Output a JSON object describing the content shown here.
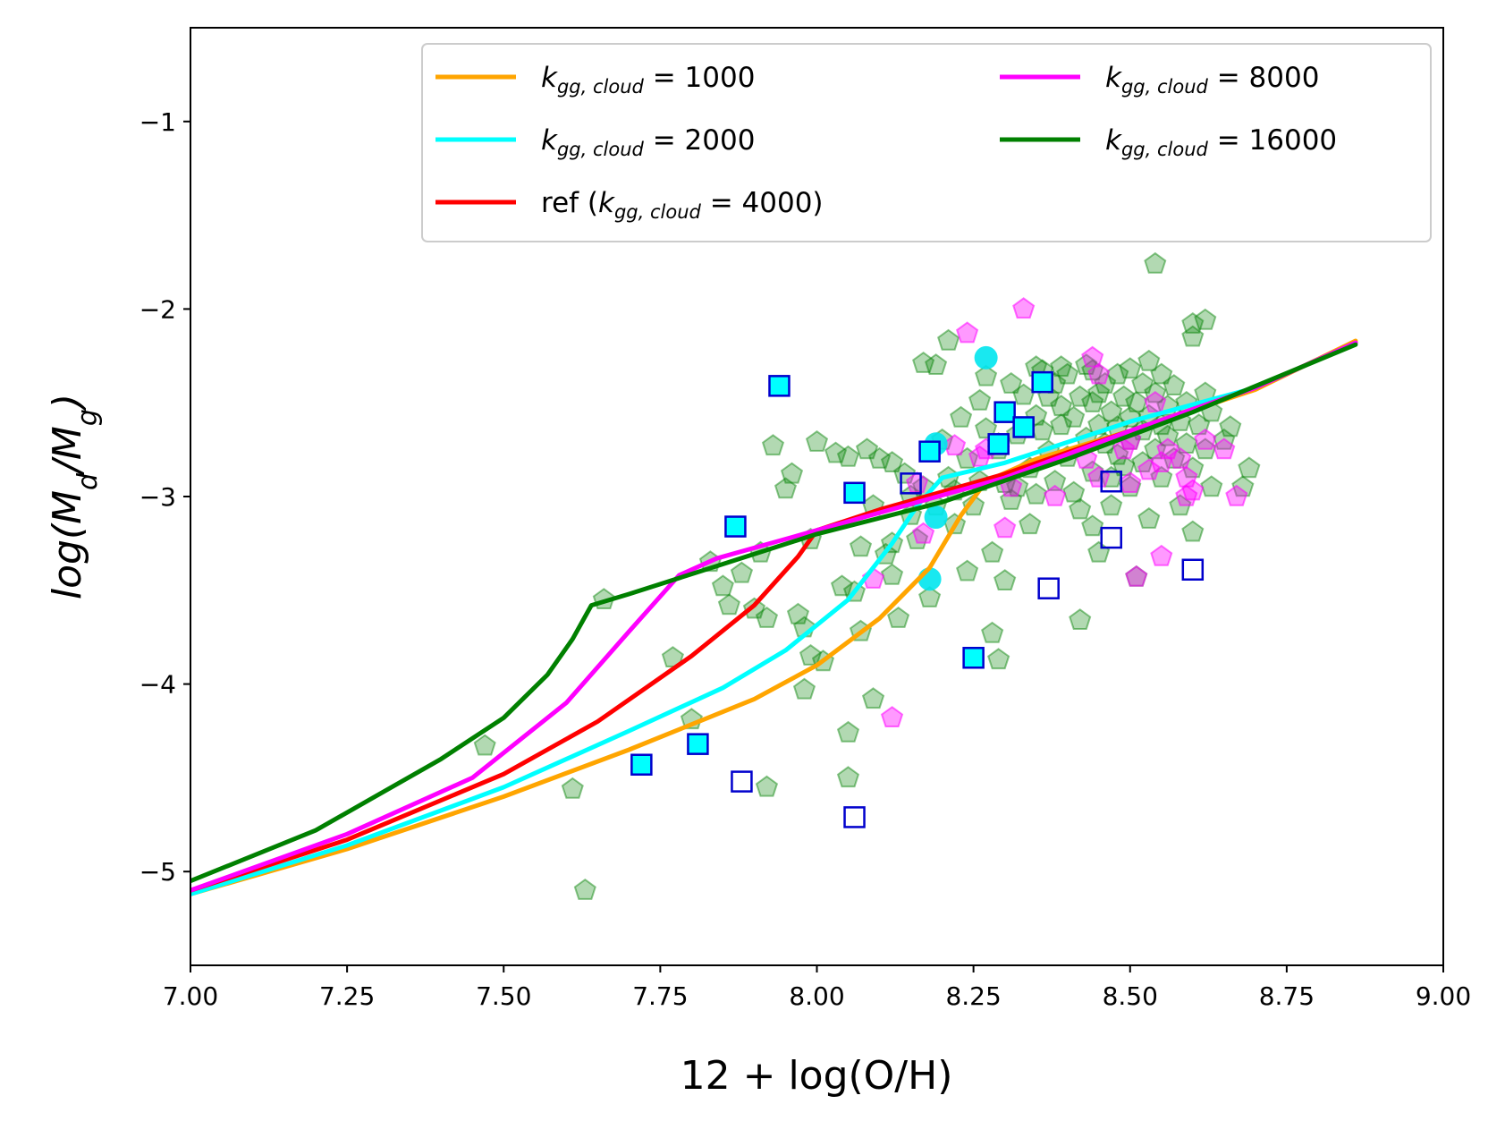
{
  "chart_data": {
    "type": "line",
    "title": "",
    "xlabel": "12 + log(O/H)",
    "ylabel": "log(M_d/M_g)",
    "xlim": [
      7.0,
      9.0
    ],
    "ylim": [
      -5.5,
      -0.5
    ],
    "xticks": [
      7.0,
      7.25,
      7.5,
      7.75,
      8.0,
      8.25,
      8.5,
      8.75,
      9.0
    ],
    "xtick_labels": [
      "7.00",
      "7.25",
      "7.50",
      "7.75",
      "8.00",
      "8.25",
      "8.50",
      "8.75",
      "9.00"
    ],
    "yticks": [
      -5,
      -4,
      -3,
      -2,
      -1
    ],
    "ytick_labels": [
      "−5",
      "−4",
      "−3",
      "−2",
      "−1"
    ],
    "grid": false,
    "legend_position": "top-right",
    "series": [
      {
        "name": "k_gg,cloud = 1000",
        "legend_text": "1000",
        "color": "#FFA500",
        "points": [
          [
            7.0,
            -5.12
          ],
          [
            7.25,
            -4.88
          ],
          [
            7.5,
            -4.6
          ],
          [
            7.7,
            -4.35
          ],
          [
            7.9,
            -4.08
          ],
          [
            8.0,
            -3.9
          ],
          [
            8.1,
            -3.65
          ],
          [
            8.18,
            -3.38
          ],
          [
            8.23,
            -3.1
          ],
          [
            8.27,
            -2.92
          ],
          [
            8.35,
            -2.8
          ],
          [
            8.5,
            -2.65
          ],
          [
            8.7,
            -2.43
          ],
          [
            8.86,
            -2.17
          ]
        ]
      },
      {
        "name": "k_gg,cloud = 2000",
        "legend_text": "2000",
        "color": "#00FFFF",
        "points": [
          [
            7.0,
            -5.12
          ],
          [
            7.25,
            -4.86
          ],
          [
            7.5,
            -4.55
          ],
          [
            7.7,
            -4.25
          ],
          [
            7.85,
            -4.02
          ],
          [
            7.95,
            -3.82
          ],
          [
            8.05,
            -3.55
          ],
          [
            8.12,
            -3.25
          ],
          [
            8.16,
            -3.05
          ],
          [
            8.2,
            -2.9
          ],
          [
            8.3,
            -2.82
          ],
          [
            8.5,
            -2.6
          ],
          [
            8.7,
            -2.42
          ],
          [
            8.86,
            -2.18
          ]
        ]
      },
      {
        "name": "ref (k_gg,cloud = 4000)",
        "legend_text": "ref (",
        "legend_value": "4000)",
        "color": "#FF0000",
        "points": [
          [
            7.0,
            -5.1
          ],
          [
            7.25,
            -4.83
          ],
          [
            7.5,
            -4.48
          ],
          [
            7.65,
            -4.2
          ],
          [
            7.8,
            -3.85
          ],
          [
            7.9,
            -3.58
          ],
          [
            7.97,
            -3.32
          ],
          [
            8.0,
            -3.18
          ],
          [
            8.1,
            -3.07
          ],
          [
            8.3,
            -2.88
          ],
          [
            8.5,
            -2.65
          ],
          [
            8.7,
            -2.42
          ],
          [
            8.86,
            -2.18
          ]
        ]
      },
      {
        "name": "k_gg,cloud = 8000",
        "legend_text": "8000",
        "color": "#FF00FF",
        "points": [
          [
            7.0,
            -5.1
          ],
          [
            7.25,
            -4.8
          ],
          [
            7.45,
            -4.5
          ],
          [
            7.6,
            -4.1
          ],
          [
            7.7,
            -3.72
          ],
          [
            7.78,
            -3.42
          ],
          [
            7.84,
            -3.33
          ],
          [
            8.0,
            -3.18
          ],
          [
            8.3,
            -2.9
          ],
          [
            8.5,
            -2.65
          ],
          [
            8.7,
            -2.42
          ],
          [
            8.86,
            -2.18
          ]
        ]
      },
      {
        "name": "k_gg,cloud = 16000",
        "legend_text": "16000",
        "color": "#008000",
        "points": [
          [
            7.0,
            -5.05
          ],
          [
            7.2,
            -4.78
          ],
          [
            7.4,
            -4.4
          ],
          [
            7.5,
            -4.18
          ],
          [
            7.57,
            -3.95
          ],
          [
            7.61,
            -3.76
          ],
          [
            7.64,
            -3.58
          ],
          [
            7.7,
            -3.52
          ],
          [
            7.85,
            -3.36
          ],
          [
            8.0,
            -3.2
          ],
          [
            8.2,
            -3.03
          ],
          [
            8.4,
            -2.8
          ],
          [
            8.6,
            -2.55
          ],
          [
            8.86,
            -2.19
          ]
        ]
      }
    ],
    "scatter_series": [
      {
        "name": "green pentagons",
        "color": "#008000",
        "marker": "pentagon",
        "opacity": 0.3,
        "points": [
          [
            8.54,
            -1.76
          ],
          [
            8.6,
            -2.08
          ],
          [
            8.62,
            -2.06
          ],
          [
            8.6,
            -2.15
          ],
          [
            8.21,
            -2.17
          ],
          [
            8.19,
            -2.3
          ],
          [
            8.17,
            -2.29
          ],
          [
            7.47,
            -4.33
          ],
          [
            7.61,
            -4.56
          ],
          [
            7.63,
            -5.1
          ],
          [
            7.66,
            -3.55
          ],
          [
            7.77,
            -3.86
          ],
          [
            7.8,
            -4.19
          ],
          [
            7.83,
            -3.35
          ],
          [
            7.85,
            -3.48
          ],
          [
            7.86,
            -3.58
          ],
          [
            7.88,
            -3.41
          ],
          [
            7.9,
            -3.6
          ],
          [
            7.91,
            -3.3
          ],
          [
            7.92,
            -4.55
          ],
          [
            7.92,
            -3.65
          ],
          [
            7.93,
            -2.73
          ],
          [
            7.95,
            -2.96
          ],
          [
            7.96,
            -2.88
          ],
          [
            7.97,
            -3.63
          ],
          [
            7.98,
            -3.7
          ],
          [
            7.99,
            -3.23
          ],
          [
            7.99,
            -3.85
          ],
          [
            7.98,
            -4.03
          ],
          [
            8.0,
            -2.71
          ],
          [
            8.01,
            -3.88
          ],
          [
            8.03,
            -2.77
          ],
          [
            8.04,
            -3.48
          ],
          [
            8.05,
            -4.5
          ],
          [
            8.05,
            -4.26
          ],
          [
            8.05,
            -2.79
          ],
          [
            8.06,
            -3.51
          ],
          [
            8.07,
            -3.27
          ],
          [
            8.07,
            -3.72
          ],
          [
            8.08,
            -2.75
          ],
          [
            8.09,
            -3.05
          ],
          [
            8.09,
            -4.08
          ],
          [
            8.1,
            -2.8
          ],
          [
            8.11,
            -3.31
          ],
          [
            8.12,
            -3.42
          ],
          [
            8.12,
            -3.25
          ],
          [
            8.12,
            -2.82
          ],
          [
            8.13,
            -3.65
          ],
          [
            8.14,
            -2.88
          ],
          [
            8.15,
            -3.0
          ],
          [
            8.15,
            -3.1
          ],
          [
            8.16,
            -3.23
          ],
          [
            8.17,
            -2.95
          ],
          [
            8.18,
            -3.54
          ],
          [
            8.19,
            -3.05
          ],
          [
            8.2,
            -2.7
          ],
          [
            8.21,
            -2.9
          ],
          [
            8.22,
            -3.15
          ],
          [
            8.22,
            -2.97
          ],
          [
            8.23,
            -2.58
          ],
          [
            8.24,
            -2.8
          ],
          [
            8.24,
            -3.4
          ],
          [
            8.25,
            -3.05
          ],
          [
            8.26,
            -2.49
          ],
          [
            8.26,
            -2.92
          ],
          [
            8.27,
            -2.64
          ],
          [
            8.27,
            -2.36
          ],
          [
            8.28,
            -3.3
          ],
          [
            8.28,
            -3.73
          ],
          [
            8.29,
            -3.87
          ],
          [
            8.29,
            -2.75
          ],
          [
            8.3,
            -3.45
          ],
          [
            8.3,
            -2.93
          ],
          [
            8.31,
            -2.4
          ],
          [
            8.31,
            -3.02
          ],
          [
            8.32,
            -2.67
          ],
          [
            8.32,
            -2.95
          ],
          [
            8.33,
            -2.46
          ],
          [
            8.34,
            -2.85
          ],
          [
            8.34,
            -3.15
          ],
          [
            8.35,
            -2.31
          ],
          [
            8.35,
            -2.57
          ],
          [
            8.35,
            -2.99
          ],
          [
            8.36,
            -2.33
          ],
          [
            8.36,
            -2.65
          ],
          [
            8.37,
            -2.47
          ],
          [
            8.37,
            -2.76
          ],
          [
            8.38,
            -2.4
          ],
          [
            8.38,
            -2.92
          ],
          [
            8.39,
            -2.52
          ],
          [
            8.39,
            -2.62
          ],
          [
            8.4,
            -2.79
          ],
          [
            8.4,
            -2.35
          ],
          [
            8.41,
            -2.58
          ],
          [
            8.41,
            -2.98
          ],
          [
            8.42,
            -3.66
          ],
          [
            8.42,
            -2.47
          ],
          [
            8.42,
            -3.07
          ],
          [
            8.43,
            -2.69
          ],
          [
            8.43,
            -2.3
          ],
          [
            8.44,
            -2.5
          ],
          [
            8.44,
            -2.87
          ],
          [
            8.44,
            -3.16
          ],
          [
            8.45,
            -2.45
          ],
          [
            8.45,
            -2.62
          ],
          [
            8.45,
            -3.3
          ],
          [
            8.46,
            -2.4
          ],
          [
            8.46,
            -2.72
          ],
          [
            8.47,
            -2.55
          ],
          [
            8.47,
            -2.9
          ],
          [
            8.47,
            -3.05
          ],
          [
            8.48,
            -2.35
          ],
          [
            8.48,
            -2.63
          ],
          [
            8.48,
            -2.78
          ],
          [
            8.49,
            -2.47
          ],
          [
            8.49,
            -2.84
          ],
          [
            8.5,
            -2.32
          ],
          [
            8.5,
            -2.58
          ],
          [
            8.5,
            -2.7
          ],
          [
            8.5,
            -2.95
          ],
          [
            8.51,
            -2.5
          ],
          [
            8.51,
            -3.43
          ],
          [
            8.52,
            -2.4
          ],
          [
            8.52,
            -2.65
          ],
          [
            8.52,
            -2.82
          ],
          [
            8.53,
            -2.28
          ],
          [
            8.53,
            -2.57
          ],
          [
            8.53,
            -3.12
          ],
          [
            8.54,
            -2.75
          ],
          [
            8.54,
            -2.45
          ],
          [
            8.55,
            -2.62
          ],
          [
            8.55,
            -2.35
          ],
          [
            8.55,
            -2.9
          ],
          [
            8.56,
            -2.52
          ],
          [
            8.56,
            -2.68
          ],
          [
            8.57,
            -2.8
          ],
          [
            8.57,
            -2.41
          ],
          [
            8.58,
            -2.6
          ],
          [
            8.58,
            -3.05
          ],
          [
            8.59,
            -2.72
          ],
          [
            8.59,
            -2.5
          ],
          [
            8.6,
            -2.85
          ],
          [
            8.6,
            -3.19
          ],
          [
            8.61,
            -2.62
          ],
          [
            8.62,
            -2.75
          ],
          [
            8.62,
            -2.45
          ],
          [
            8.63,
            -2.55
          ],
          [
            8.63,
            -2.95
          ],
          [
            8.65,
            -2.7
          ],
          [
            8.66,
            -2.63
          ],
          [
            8.68,
            -2.95
          ],
          [
            8.69,
            -2.85
          ],
          [
            8.29,
            -2.72
          ],
          [
            8.39,
            -2.31
          ],
          [
            8.44,
            -2.33
          ]
        ]
      },
      {
        "name": "magenta pentagons",
        "color": "#FF00FF",
        "marker": "pentagon",
        "opacity": 0.4,
        "points": [
          [
            8.33,
            -2.0
          ],
          [
            8.24,
            -2.13
          ],
          [
            8.44,
            -2.26
          ],
          [
            8.45,
            -2.35
          ],
          [
            8.09,
            -3.44
          ],
          [
            8.12,
            -4.18
          ],
          [
            8.16,
            -2.93
          ],
          [
            8.17,
            -3.2
          ],
          [
            8.22,
            -2.73
          ],
          [
            8.26,
            -2.79
          ],
          [
            8.27,
            -2.75
          ],
          [
            8.3,
            -3.17
          ],
          [
            8.31,
            -2.95
          ],
          [
            8.38,
            -3.0
          ],
          [
            8.43,
            -2.8
          ],
          [
            8.45,
            -2.9
          ],
          [
            8.49,
            -2.75
          ],
          [
            8.5,
            -2.7
          ],
          [
            8.5,
            -2.93
          ],
          [
            8.51,
            -3.43
          ],
          [
            8.53,
            -2.86
          ],
          [
            8.54,
            -2.5
          ],
          [
            8.55,
            -2.82
          ],
          [
            8.55,
            -3.32
          ],
          [
            8.56,
            -2.75
          ],
          [
            8.58,
            -2.8
          ],
          [
            8.59,
            -2.9
          ],
          [
            8.6,
            -2.97
          ],
          [
            8.62,
            -2.7
          ],
          [
            8.65,
            -2.75
          ],
          [
            8.67,
            -3.0
          ],
          [
            8.59,
            -3.0
          ]
        ]
      },
      {
        "name": "cyan filled circles",
        "color": "#00E5EE",
        "marker": "circle",
        "opacity": 0.9,
        "points": [
          [
            8.27,
            -2.26
          ],
          [
            8.19,
            -2.72
          ],
          [
            8.19,
            -3.11
          ],
          [
            8.18,
            -3.44
          ]
        ]
      },
      {
        "name": "cyan filled squares",
        "color": "#00FFFF",
        "edge": "#0000CD",
        "marker": "square-filled",
        "points": [
          [
            7.94,
            -2.41
          ],
          [
            7.87,
            -3.16
          ],
          [
            7.72,
            -4.43
          ],
          [
            7.81,
            -4.32
          ],
          [
            8.06,
            -2.98
          ],
          [
            8.25,
            -3.86
          ],
          [
            8.3,
            -2.55
          ],
          [
            8.33,
            -2.63
          ],
          [
            8.36,
            -2.39
          ],
          [
            8.29,
            -2.72
          ],
          [
            8.18,
            -2.76
          ]
        ]
      },
      {
        "name": "blue open squares",
        "color": "none",
        "edge": "#0000CD",
        "marker": "square-open",
        "points": [
          [
            7.88,
            -4.52
          ],
          [
            8.06,
            -4.71
          ],
          [
            8.15,
            -2.93
          ],
          [
            8.37,
            -3.49
          ],
          [
            8.47,
            -2.92
          ],
          [
            8.47,
            -3.22
          ],
          [
            8.6,
            -3.39
          ]
        ]
      }
    ]
  }
}
